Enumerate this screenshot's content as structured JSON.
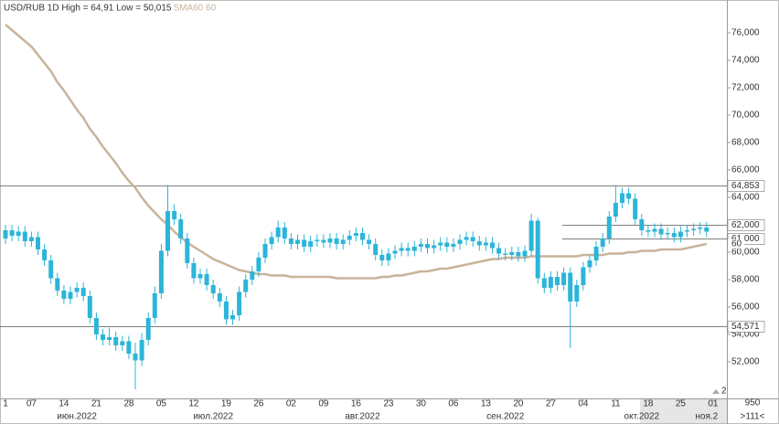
{
  "chart_data": {
    "type": "candlestick",
    "title": "USD/RUB 1D High = 64,91 Low = 50,015",
    "indicator_label": "SMA60 60",
    "indicator_color": "#c8b49a",
    "color": "#2bb5d8",
    "categories": [
      "1",
      null,
      null,
      null,
      "07",
      null,
      null,
      null,
      null,
      "14",
      null,
      null,
      null,
      null,
      "21",
      null,
      null,
      null,
      null,
      "28",
      null,
      null,
      null,
      null,
      "05",
      null,
      null,
      null,
      null,
      "12",
      null,
      null,
      null,
      null,
      "19",
      null,
      null,
      null,
      null,
      "26",
      null,
      null,
      null,
      null,
      "02",
      null,
      null,
      null,
      null,
      "09",
      null,
      null,
      null,
      null,
      "16",
      null,
      null,
      null,
      null,
      "23",
      null,
      null,
      null,
      null,
      "30",
      null,
      null,
      null,
      null,
      "06",
      null,
      null,
      null,
      null,
      "13",
      null,
      null,
      null,
      null,
      "20",
      null,
      null,
      null,
      null,
      "27",
      null,
      null,
      null,
      null,
      "04",
      null,
      null,
      null,
      null,
      "11",
      null,
      null,
      null,
      null,
      "18",
      null,
      null,
      null,
      null,
      "25",
      null,
      null,
      null,
      null,
      "01"
    ],
    "months": [
      null,
      null,
      null,
      null,
      null,
      null,
      null,
      null,
      null,
      null,
      null,
      "июн.2022",
      null,
      null,
      null,
      null,
      null,
      null,
      null,
      null,
      null,
      null,
      null,
      null,
      null,
      null,
      null,
      null,
      null,
      null,
      null,
      null,
      "июл.2022",
      null,
      null,
      null,
      null,
      null,
      null,
      null,
      null,
      null,
      null,
      null,
      null,
      null,
      null,
      null,
      null,
      null,
      null,
      null,
      null,
      null,
      null,
      "авг.2022",
      null,
      null,
      null,
      null,
      null,
      null,
      null,
      null,
      null,
      null,
      null,
      null,
      null,
      null,
      null,
      null,
      null,
      null,
      null,
      null,
      null,
      "сен.2022",
      null,
      null,
      null,
      null,
      null,
      null,
      null,
      null,
      null,
      null,
      null,
      null,
      null,
      null,
      null,
      null,
      null,
      null,
      null,
      null,
      "окт.2022",
      null,
      null,
      null,
      null,
      null,
      null,
      null,
      null,
      null,
      "ноя.2",
      null
    ],
    "open": [
      61.0,
      61.6,
      61.2,
      61.5,
      60.8,
      61.1,
      60.2,
      59.4,
      58.1,
      57.2,
      56.6,
      57.1,
      57.4,
      56.8,
      55.2,
      54.0,
      53.6,
      53.8,
      53.2,
      53.5,
      52.6,
      52.1,
      53.6,
      55.2,
      57.0,
      60.1,
      63.0,
      62.4,
      61.0,
      59.2,
      58.1,
      58.4,
      57.6,
      57.0,
      56.4,
      55.1,
      55.4,
      57.1,
      58.0,
      58.6,
      59.6,
      60.6,
      61.1,
      61.8,
      61.0,
      60.6,
      60.9,
      60.4,
      60.8,
      60.9,
      60.7,
      61.0,
      60.6,
      60.9,
      61.2,
      61.4,
      60.9,
      60.6,
      59.8,
      59.4,
      59.9,
      60.1,
      60.3,
      60.1,
      60.4,
      60.6,
      60.3,
      60.5,
      60.7,
      60.4,
      60.6,
      60.9,
      61.1,
      60.8,
      60.5,
      60.7,
      60.3,
      59.9,
      59.8,
      60.0,
      59.7,
      60.1,
      62.3,
      58.1,
      57.4,
      58.2,
      57.6,
      58.5,
      56.4,
      57.6,
      58.9,
      59.4,
      60.4,
      61.0,
      62.6,
      63.6,
      64.3,
      63.9,
      62.4,
      61.6,
      61.5,
      61.7,
      61.3,
      61.4,
      61.1,
      61.5,
      61.6,
      61.7,
      61.8,
      null
    ],
    "high": [
      62.0,
      62.0,
      61.9,
      61.9,
      61.5,
      61.5,
      60.6,
      59.8,
      58.5,
      57.6,
      57.5,
      57.8,
      57.8,
      57.2,
      55.6,
      54.4,
      54.5,
      54.2,
      53.9,
      53.9,
      53.4,
      54.1,
      55.6,
      57.5,
      60.6,
      64.9,
      63.5,
      62.8,
      61.4,
      59.6,
      58.8,
      58.8,
      58.0,
      57.4,
      56.8,
      55.8,
      57.5,
      58.4,
      59.0,
      60.0,
      61.0,
      61.5,
      62.3,
      62.2,
      61.4,
      61.3,
      61.3,
      61.2,
      61.3,
      61.3,
      61.4,
      61.4,
      61.3,
      61.6,
      61.8,
      61.8,
      61.3,
      61.0,
      60.2,
      60.3,
      60.5,
      60.7,
      60.7,
      60.8,
      61.0,
      61.0,
      60.9,
      61.1,
      61.1,
      61.0,
      61.3,
      61.5,
      61.5,
      61.2,
      61.1,
      61.1,
      60.7,
      60.3,
      60.4,
      60.4,
      60.5,
      62.8,
      62.5,
      58.5,
      58.6,
      58.6,
      58.9,
      58.9,
      58.0,
      59.3,
      59.8,
      60.8,
      61.4,
      63.0,
      64.9,
      64.7,
      64.7,
      64.3,
      62.8,
      62.0,
      62.1,
      62.1,
      61.8,
      61.8,
      61.9,
      62.0,
      62.1,
      62.2,
      62.2,
      null
    ],
    "low": [
      60.6,
      60.8,
      60.8,
      60.4,
      60.4,
      59.8,
      59.0,
      57.7,
      56.8,
      56.2,
      56.2,
      56.7,
      56.4,
      54.8,
      53.6,
      53.2,
      53.2,
      52.8,
      52.8,
      52.2,
      50.0,
      51.7,
      53.2,
      54.8,
      56.6,
      59.7,
      62.0,
      60.6,
      58.8,
      57.7,
      57.7,
      57.2,
      56.6,
      56.0,
      54.7,
      54.7,
      55.0,
      56.7,
      57.6,
      58.2,
      59.2,
      60.2,
      60.7,
      60.6,
      60.2,
      60.2,
      60.0,
      60.0,
      60.4,
      60.3,
      60.3,
      60.2,
      60.2,
      60.5,
      60.8,
      60.5,
      60.2,
      59.4,
      59.0,
      59.0,
      59.5,
      59.7,
      59.7,
      59.7,
      60.0,
      59.9,
      59.9,
      60.1,
      60.0,
      60.0,
      60.2,
      60.5,
      60.4,
      60.1,
      60.1,
      59.9,
      59.5,
      59.4,
      59.4,
      59.3,
      59.3,
      59.7,
      57.7,
      57.0,
      57.0,
      57.2,
      57.2,
      53.0,
      56.0,
      57.2,
      58.5,
      59.0,
      60.0,
      60.6,
      62.2,
      63.2,
      63.5,
      62.0,
      61.2,
      61.1,
      61.1,
      60.9,
      60.9,
      60.7,
      60.7,
      61.1,
      61.2,
      61.3,
      61.1,
      null
    ],
    "close": [
      61.6,
      61.2,
      61.5,
      60.8,
      61.1,
      60.2,
      59.4,
      58.1,
      57.2,
      56.6,
      57.1,
      57.4,
      56.8,
      55.2,
      54.0,
      53.6,
      53.8,
      53.2,
      53.5,
      52.6,
      52.1,
      53.6,
      55.2,
      57.0,
      60.1,
      63.0,
      62.4,
      61.0,
      59.2,
      58.1,
      58.4,
      57.6,
      57.0,
      56.4,
      55.1,
      55.4,
      57.1,
      58.0,
      58.6,
      59.6,
      60.6,
      61.1,
      61.8,
      61.0,
      60.6,
      60.9,
      60.4,
      60.8,
      60.9,
      60.7,
      61.0,
      60.6,
      60.9,
      61.2,
      61.4,
      60.9,
      60.6,
      59.8,
      59.4,
      59.9,
      60.1,
      60.3,
      60.1,
      60.4,
      60.6,
      60.3,
      60.5,
      60.7,
      60.4,
      60.6,
      60.9,
      61.1,
      60.8,
      60.5,
      60.7,
      60.3,
      59.9,
      59.8,
      60.0,
      59.7,
      60.1,
      62.3,
      58.1,
      57.4,
      58.2,
      57.6,
      58.5,
      56.4,
      57.6,
      58.9,
      59.4,
      60.4,
      61.0,
      62.6,
      63.6,
      64.3,
      63.9,
      62.4,
      61.6,
      61.5,
      61.7,
      61.3,
      61.4,
      61.1,
      61.5,
      61.6,
      61.7,
      61.8,
      61.5,
      null
    ],
    "sma": [
      76.6,
      76.2,
      75.8,
      75.4,
      75.0,
      74.4,
      73.8,
      73.2,
      72.4,
      71.8,
      71.1,
      70.4,
      69.8,
      69.0,
      68.4,
      67.7,
      67.1,
      66.5,
      65.8,
      65.2,
      64.7,
      64.0,
      63.4,
      62.9,
      62.4,
      62.0,
      61.5,
      61.1,
      60.7,
      60.4,
      60.1,
      59.8,
      59.5,
      59.3,
      59.1,
      58.9,
      58.7,
      58.6,
      58.5,
      58.4,
      58.4,
      58.3,
      58.3,
      58.3,
      58.2,
      58.2,
      58.2,
      58.2,
      58.2,
      58.2,
      58.2,
      58.1,
      58.1,
      58.1,
      58.1,
      58.1,
      58.1,
      58.1,
      58.2,
      58.2,
      58.3,
      58.3,
      58.4,
      58.5,
      58.6,
      58.6,
      58.7,
      58.8,
      58.8,
      58.9,
      59.0,
      59.1,
      59.2,
      59.3,
      59.4,
      59.5,
      59.5,
      59.6,
      59.6,
      59.6,
      59.6,
      59.7,
      59.7,
      59.7,
      59.7,
      59.7,
      59.7,
      59.7,
      59.7,
      59.8,
      59.8,
      59.8,
      59.8,
      59.9,
      59.9,
      59.9,
      60.0,
      60.0,
      60.1,
      60.1,
      60.1,
      60.2,
      60.2,
      60.2,
      60.2,
      60.3,
      60.4,
      60.5,
      60.6,
      null
    ],
    "sma_value_label": "60",
    "levels": [
      {
        "value": 64.853,
        "label": "64,853"
      },
      {
        "value": 62,
        "label": "62,000"
      },
      {
        "value": 61,
        "label": "61,000"
      },
      {
        "value": 54.571,
        "label": "54,571"
      }
    ],
    "ylim": [
      49.33,
      78.4
    ],
    "yticks": [
      {
        "value": 52,
        "label": "52,000"
      },
      {
        "value": 54,
        "label": "54,000"
      },
      {
        "value": 56,
        "label": "56,000"
      },
      {
        "value": 58,
        "label": "58,000"
      },
      {
        "value": 60,
        "label": "60,000"
      },
      {
        "value": 62,
        "label": "62,000"
      },
      {
        "value": 64,
        "label": "64,000"
      },
      {
        "value": 66,
        "label": "66,000"
      },
      {
        "value": 68,
        "label": "68,000"
      },
      {
        "value": 70,
        "label": "70,000"
      },
      {
        "value": 72,
        "label": "72,000"
      },
      {
        "value": 74,
        "label": "74,000"
      },
      {
        "value": 76,
        "label": "76,000"
      }
    ],
    "corner_count": "2",
    "scale_value": "950",
    "bar_count": ">111<"
  }
}
